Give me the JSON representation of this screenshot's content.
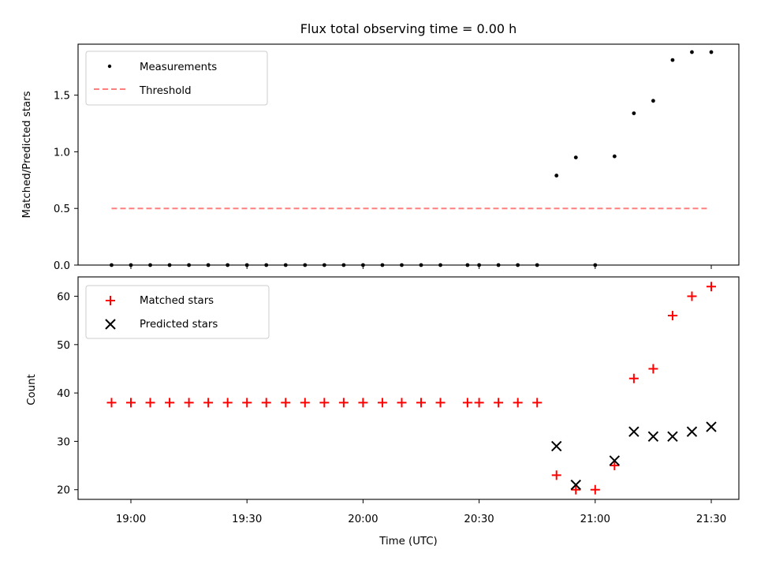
{
  "title": "Flux total observing time = 0.00 h",
  "xlabel": "Time (UTC)",
  "x_ticks": [
    "19:00",
    "19:30",
    "20:00",
    "20:30",
    "21:00",
    "21:30"
  ],
  "chart_data": [
    {
      "type": "scatter",
      "ylabel": "Matched/Predicted stars",
      "ylim": [
        0,
        1.95
      ],
      "y_ticks": [
        "0.0",
        "0.5",
        "1.0",
        "1.5"
      ],
      "legend": [
        "Measurements",
        "Threshold"
      ],
      "legend_position": "upper left",
      "threshold": {
        "name": "Threshold",
        "value": 0.5,
        "x_start": "18:55",
        "x_end": "21:29",
        "color": "#ff7f7f"
      },
      "series": [
        {
          "name": "Measurements",
          "color": "#000000",
          "points": [
            [
              "18:55",
              0
            ],
            [
              "19:00",
              0
            ],
            [
              "19:05",
              0
            ],
            [
              "19:10",
              0
            ],
            [
              "19:15",
              0
            ],
            [
              "19:20",
              0
            ],
            [
              "19:25",
              0
            ],
            [
              "19:30",
              0
            ],
            [
              "19:35",
              0
            ],
            [
              "19:40",
              0
            ],
            [
              "19:45",
              0
            ],
            [
              "19:50",
              0
            ],
            [
              "19:55",
              0
            ],
            [
              "20:00",
              0
            ],
            [
              "20:05",
              0
            ],
            [
              "20:10",
              0
            ],
            [
              "20:15",
              0
            ],
            [
              "20:20",
              0
            ],
            [
              "20:27",
              0
            ],
            [
              "20:30",
              0
            ],
            [
              "20:35",
              0
            ],
            [
              "20:40",
              0
            ],
            [
              "20:45",
              0
            ],
            [
              "20:50",
              0.79
            ],
            [
              "20:55",
              0.95
            ],
            [
              "21:00",
              0
            ],
            [
              "21:05",
              0.96
            ],
            [
              "21:10",
              1.34
            ],
            [
              "21:15",
              1.45
            ],
            [
              "21:20",
              1.81
            ],
            [
              "21:25",
              1.88
            ],
            [
              "21:30",
              1.88
            ]
          ]
        }
      ]
    },
    {
      "type": "scatter",
      "ylabel": "Count",
      "ylim": [
        18,
        64
      ],
      "y_ticks": [
        "20",
        "30",
        "40",
        "50",
        "60"
      ],
      "legend": [
        "Matched stars",
        "Predicted stars"
      ],
      "legend_position": "upper left",
      "series": [
        {
          "name": "Matched stars",
          "marker": "+",
          "color": "#ff0000",
          "points": [
            [
              "18:55",
              38
            ],
            [
              "19:00",
              38
            ],
            [
              "19:05",
              38
            ],
            [
              "19:10",
              38
            ],
            [
              "19:15",
              38
            ],
            [
              "19:20",
              38
            ],
            [
              "19:25",
              38
            ],
            [
              "19:30",
              38
            ],
            [
              "19:35",
              38
            ],
            [
              "19:40",
              38
            ],
            [
              "19:45",
              38
            ],
            [
              "19:50",
              38
            ],
            [
              "19:55",
              38
            ],
            [
              "20:00",
              38
            ],
            [
              "20:05",
              38
            ],
            [
              "20:10",
              38
            ],
            [
              "20:15",
              38
            ],
            [
              "20:20",
              38
            ],
            [
              "20:27",
              38
            ],
            [
              "20:30",
              38
            ],
            [
              "20:35",
              38
            ],
            [
              "20:40",
              38
            ],
            [
              "20:45",
              38
            ],
            [
              "20:50",
              23
            ],
            [
              "20:55",
              20
            ],
            [
              "21:00",
              20
            ],
            [
              "21:05",
              25
            ],
            [
              "21:10",
              43
            ],
            [
              "21:15",
              45
            ],
            [
              "21:20",
              56
            ],
            [
              "21:25",
              60
            ],
            [
              "21:30",
              62
            ]
          ]
        },
        {
          "name": "Predicted stars",
          "marker": "x",
          "color": "#000000",
          "points": [
            [
              "20:50",
              29
            ],
            [
              "20:55",
              21
            ],
            [
              "21:05",
              26
            ],
            [
              "21:10",
              32
            ],
            [
              "21:15",
              31
            ],
            [
              "21:20",
              31
            ],
            [
              "21:25",
              32
            ],
            [
              "21:30",
              33
            ]
          ]
        }
      ]
    }
  ]
}
